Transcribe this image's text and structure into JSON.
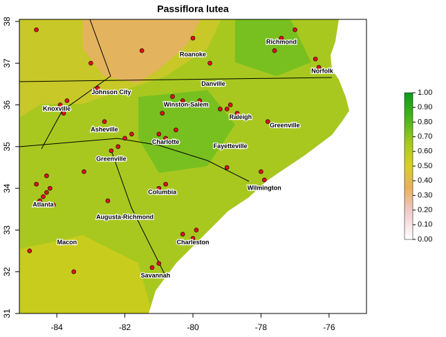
{
  "chart_data": {
    "type": "map",
    "title": "Passiflora lutea",
    "xlim": [
      -85.1,
      -74.9
    ],
    "ylim": [
      31,
      38
    ],
    "xticks": [
      -84,
      -82,
      -80,
      -78,
      -76
    ],
    "yticks": [
      31,
      32,
      33,
      34,
      35,
      36,
      37,
      38
    ],
    "point_color": "#e0101a",
    "cities": [
      {
        "name": "Richmond",
        "lon": -77.4,
        "lat": 37.5
      },
      {
        "name": "Norfolk",
        "lon": -76.2,
        "lat": 36.8
      },
      {
        "name": "Roanoke",
        "lon": -80.0,
        "lat": 37.2
      },
      {
        "name": "Danville",
        "lon": -79.4,
        "lat": 36.5
      },
      {
        "name": "Johnson City",
        "lon": -82.4,
        "lat": 36.3
      },
      {
        "name": "Knoxville",
        "lon": -84.0,
        "lat": 35.9
      },
      {
        "name": "Winston-Salem",
        "lon": -80.2,
        "lat": 36.0
      },
      {
        "name": "Raleigh",
        "lon": -78.6,
        "lat": 35.7
      },
      {
        "name": "Greenville",
        "lon": -77.3,
        "lat": 35.5
      },
      {
        "name": "Asheville",
        "lon": -82.6,
        "lat": 35.4
      },
      {
        "name": "Charlotte",
        "lon": -80.8,
        "lat": 35.1
      },
      {
        "name": "Fayetteville",
        "lon": -78.9,
        "lat": 35.0
      },
      {
        "name": "Greenville",
        "lon": -82.4,
        "lat": 34.7
      },
      {
        "name": "Wilmington",
        "lon": -77.9,
        "lat": 34.0
      },
      {
        "name": "Columbia",
        "lon": -80.9,
        "lat": 33.9
      },
      {
        "name": "Atlanta",
        "lon": -84.4,
        "lat": 33.6
      },
      {
        "name": "Augusta-Richmond",
        "lon": -82.0,
        "lat": 33.3
      },
      {
        "name": "Macon",
        "lon": -83.7,
        "lat": 32.7
      },
      {
        "name": "Charleston",
        "lon": -80.0,
        "lat": 32.7
      },
      {
        "name": "Savannah",
        "lon": -81.1,
        "lat": 31.9
      }
    ],
    "occurrences": {
      "lon": [
        -84.4,
        -84.3,
        -84.5,
        -84.2,
        -84.6,
        -84.1,
        -84.3,
        -83.9,
        -84.1,
        -83.7,
        -83.8,
        -82.6,
        -82.4,
        -82.2,
        -82.0,
        -81.8,
        -80.3,
        -79.8,
        -79.0,
        -78.7,
        -78.9,
        -79.2,
        -80.6,
        -80.9,
        -80.8,
        -81.0,
        -80.5,
        -81.0,
        -80.8,
        -80.0,
        -79.9,
        -80.3,
        -81.2,
        -81.0,
        -77.9,
        -78.0,
        -77.4,
        -77.2,
        -76.3,
        -76.4,
        -77.0,
        -77.6,
        -84.6,
        -83.0,
        -81.5,
        -80.0,
        -83.5,
        -84.8,
        -82.5,
        -79.0,
        -77.8,
        -83.2,
        -79.5,
        -82.8
      ],
      "lat": [
        33.8,
        33.9,
        33.7,
        34.0,
        34.1,
        33.6,
        34.3,
        36.0,
        35.9,
        36.1,
        35.8,
        35.6,
        34.9,
        35.0,
        35.2,
        35.3,
        36.1,
        36.1,
        35.9,
        35.8,
        36.0,
        35.9,
        36.2,
        35.8,
        35.2,
        35.3,
        35.4,
        34.0,
        34.1,
        32.8,
        33.0,
        32.9,
        32.1,
        32.2,
        34.2,
        34.4,
        37.6,
        37.5,
        36.9,
        37.1,
        37.8,
        37.3,
        37.8,
        37.0,
        37.3,
        37.6,
        32.0,
        32.5,
        33.7,
        34.5,
        35.6,
        34.4,
        37.0,
        36.4
      ]
    },
    "colorbar": {
      "lim": [
        0,
        1
      ],
      "ticks": [
        {
          "value": 0,
          "label": "0.00"
        },
        {
          "value": 0.1,
          "label": "0.10"
        },
        {
          "value": 0.2,
          "label": "0.20"
        },
        {
          "value": 0.3,
          "label": "0.30"
        },
        {
          "value": 0.4,
          "label": "0.40"
        },
        {
          "value": 0.5,
          "label": "0.50"
        },
        {
          "value": 0.6,
          "label": "0.60"
        },
        {
          "value": 0.7,
          "label": "0.70"
        },
        {
          "value": 0.8,
          "label": "0.80"
        },
        {
          "value": 0.9,
          "label": "0.90"
        },
        {
          "value": 1,
          "label": "1.00"
        }
      ]
    }
  }
}
